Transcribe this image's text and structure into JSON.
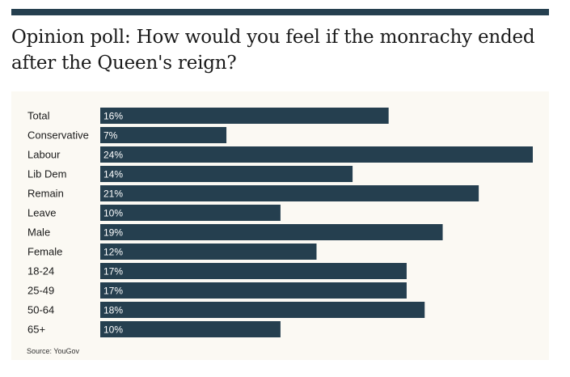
{
  "title": "Opinion poll: How would you feel if the monrachy ended after the Queen's reign?",
  "source": "Source: YouGov",
  "colors": {
    "bar": "#253f4f",
    "panel": "#fbf9f3",
    "rule": "#253f4f"
  },
  "chart_data": {
    "type": "bar",
    "orientation": "horizontal",
    "title": "Opinion poll: How would you feel if the monrachy ended after the Queen's reign?",
    "categories": [
      "Total",
      "Conservative",
      "Labour",
      "Lib Dem",
      "Remain",
      "Leave",
      "Male",
      "Female",
      "18-24",
      "25-49",
      "50-64",
      "65+"
    ],
    "values": [
      16,
      7,
      24,
      14,
      21,
      10,
      19,
      12,
      17,
      17,
      18,
      10
    ],
    "value_labels": [
      "16%",
      "7%",
      "24%",
      "14%",
      "21%",
      "10%",
      "19%",
      "12%",
      "17%",
      "17%",
      "18%",
      "10%"
    ],
    "unit": "%",
    "xlim": [
      0,
      24
    ],
    "grid": false,
    "legend": "none"
  }
}
